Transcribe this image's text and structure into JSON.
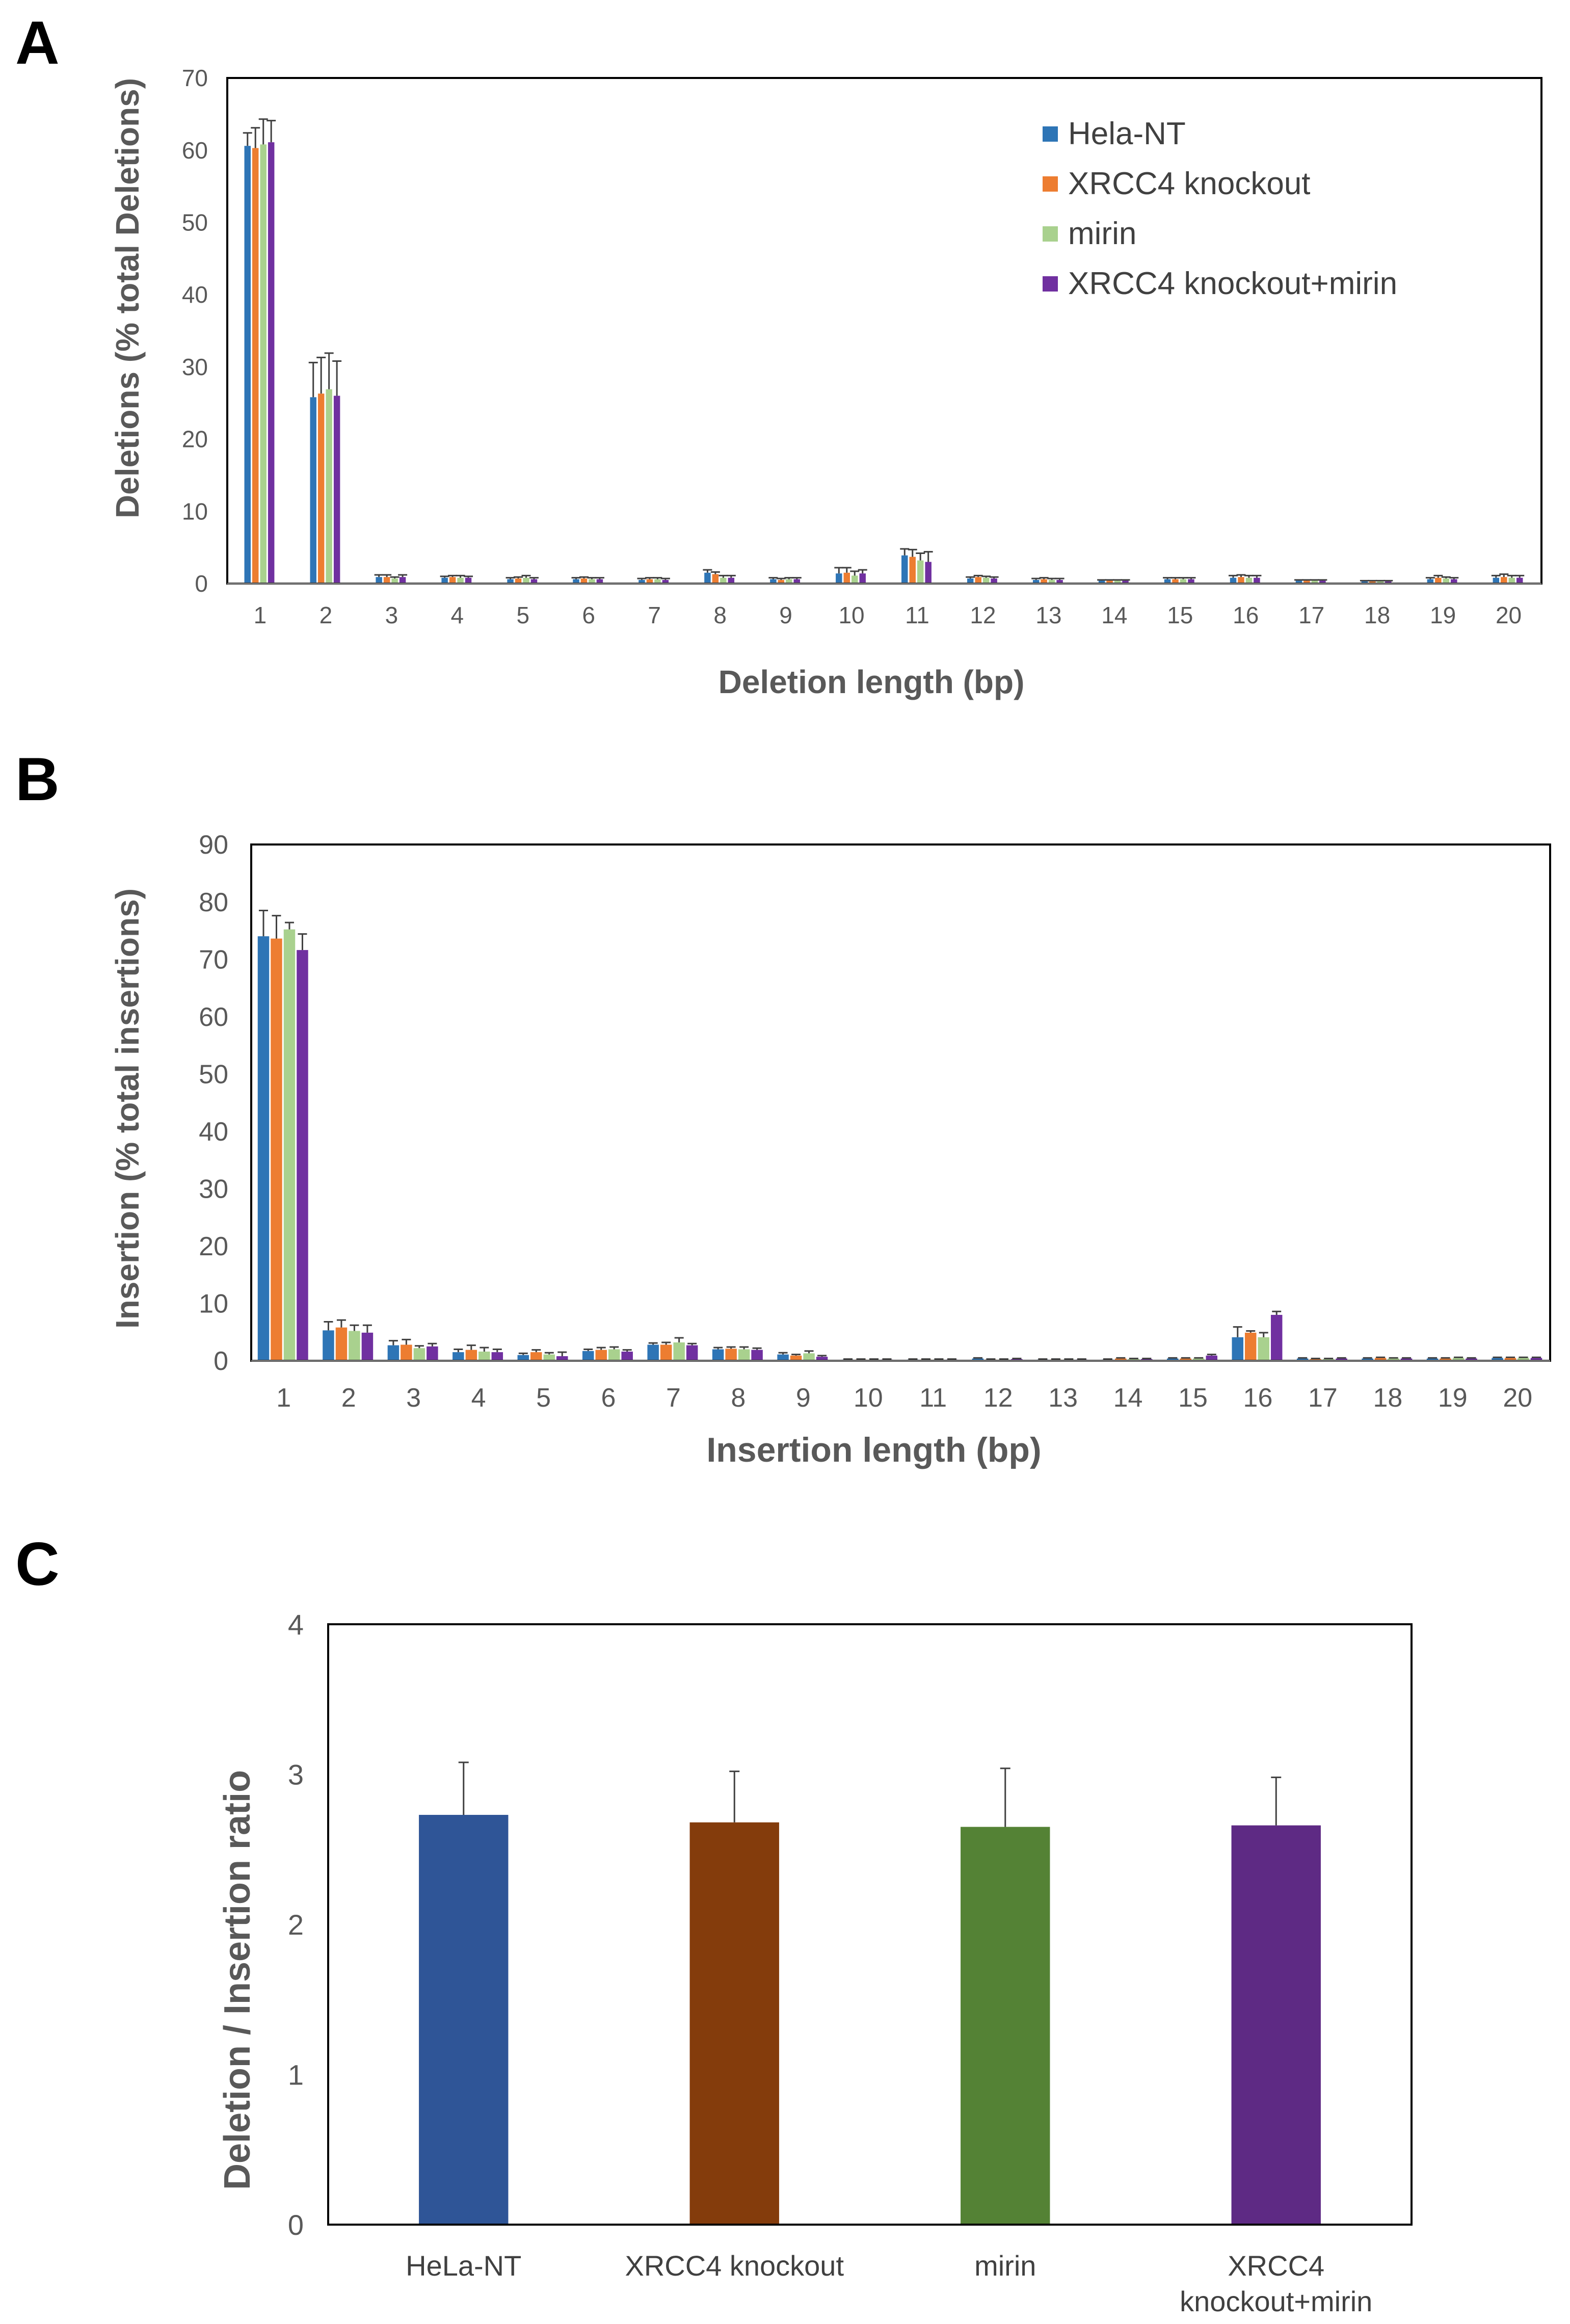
{
  "series_colors": [
    "#2E75B6",
    "#ED7D31",
    "#A9D18E",
    "#7030A0"
  ],
  "panel_c_colors": [
    "#2F5597",
    "#843C0C",
    "#548235",
    "#5E2A84"
  ],
  "chart_data": [
    {
      "panel_label": "A",
      "type": "bar",
      "title": "",
      "xlabel": "Deletion length (bp)",
      "ylabel": "Deletions (% total Deletions)",
      "ylim": [
        0,
        70
      ],
      "yticks": [
        0,
        10,
        20,
        30,
        40,
        50,
        60,
        70
      ],
      "grid": false,
      "legend": "top-right",
      "categories": [
        "1",
        "2",
        "3",
        "4",
        "5",
        "6",
        "7",
        "8",
        "9",
        "10",
        "11",
        "12",
        "13",
        "14",
        "15",
        "16",
        "17",
        "18",
        "19",
        "20"
      ],
      "series": [
        {
          "name": "Hela-NT",
          "values": [
            60.6,
            25.8,
            0.9,
            0.8,
            0.6,
            0.6,
            0.5,
            1.5,
            0.6,
            1.4,
            3.9,
            0.7,
            0.5,
            0.4,
            0.6,
            0.8,
            0.4,
            0.3,
            0.6,
            0.8
          ],
          "errors": [
            1.8,
            4.8,
            0.3,
            0.2,
            0.2,
            0.2,
            0.2,
            0.4,
            0.2,
            0.8,
            0.9,
            0.2,
            0.2,
            0.1,
            0.2,
            0.3,
            0.1,
            0.1,
            0.2,
            0.3
          ]
        },
        {
          "name": "XRCC4 knockout",
          "values": [
            60.3,
            26.3,
            0.9,
            0.9,
            0.7,
            0.7,
            0.6,
            1.3,
            0.5,
            1.5,
            3.7,
            0.9,
            0.6,
            0.4,
            0.6,
            0.9,
            0.4,
            0.3,
            0.8,
            0.9
          ],
          "errors": [
            2.8,
            5.0,
            0.3,
            0.2,
            0.2,
            0.2,
            0.2,
            0.3,
            0.2,
            0.7,
            1.0,
            0.2,
            0.2,
            0.1,
            0.2,
            0.3,
            0.1,
            0.1,
            0.3,
            0.4
          ]
        },
        {
          "name": "mirin",
          "values": [
            60.8,
            26.9,
            0.7,
            0.8,
            0.8,
            0.6,
            0.6,
            0.8,
            0.6,
            1.1,
            3.2,
            0.8,
            0.5,
            0.4,
            0.6,
            0.8,
            0.4,
            0.3,
            0.7,
            0.8
          ],
          "errors": [
            3.5,
            5.0,
            0.2,
            0.3,
            0.3,
            0.2,
            0.2,
            0.3,
            0.2,
            0.6,
            1.0,
            0.2,
            0.2,
            0.1,
            0.2,
            0.3,
            0.1,
            0.1,
            0.2,
            0.3
          ]
        },
        {
          "name": "XRCC4 knockout+mirin",
          "values": [
            61.1,
            26.0,
            0.9,
            0.8,
            0.6,
            0.6,
            0.5,
            0.8,
            0.6,
            1.4,
            3.0,
            0.7,
            0.5,
            0.4,
            0.6,
            0.8,
            0.4,
            0.3,
            0.6,
            0.8
          ],
          "errors": [
            3.0,
            4.8,
            0.3,
            0.2,
            0.2,
            0.2,
            0.2,
            0.3,
            0.2,
            0.5,
            1.4,
            0.2,
            0.2,
            0.1,
            0.2,
            0.3,
            0.1,
            0.1,
            0.2,
            0.3
          ]
        }
      ]
    },
    {
      "panel_label": "B",
      "type": "bar",
      "title": "",
      "xlabel": "Insertion length (bp)",
      "ylabel": "Insertion (% total insertions)",
      "ylim": [
        0,
        90
      ],
      "yticks": [
        0,
        10,
        20,
        30,
        40,
        50,
        60,
        70,
        80,
        90
      ],
      "grid": false,
      "categories": [
        "1",
        "2",
        "3",
        "4",
        "5",
        "6",
        "7",
        "8",
        "9",
        "10",
        "11",
        "12",
        "13",
        "14",
        "15",
        "16",
        "17",
        "18",
        "19",
        "20"
      ],
      "series": [
        {
          "name": "Hela-NT",
          "values": [
            74.0,
            5.3,
            2.7,
            1.5,
            1.0,
            1.7,
            2.8,
            2.0,
            1.1,
            0.2,
            0.2,
            0.4,
            0.2,
            0.2,
            0.4,
            4.1,
            0.4,
            0.4,
            0.4,
            0.5
          ],
          "errors": [
            4.5,
            1.5,
            0.8,
            0.5,
            0.3,
            0.3,
            0.3,
            0.3,
            0.3,
            0.1,
            0.1,
            0.1,
            0.1,
            0.1,
            0.1,
            1.8,
            0.1,
            0.1,
            0.1,
            0.1
          ]
        },
        {
          "name": "XRCC4 knockout",
          "values": [
            73.6,
            5.8,
            2.8,
            1.9,
            1.5,
            1.9,
            2.8,
            2.1,
            0.9,
            0.2,
            0.2,
            0.2,
            0.2,
            0.4,
            0.4,
            4.9,
            0.3,
            0.5,
            0.4,
            0.5
          ],
          "errors": [
            4.0,
            1.3,
            0.9,
            0.8,
            0.4,
            0.4,
            0.4,
            0.3,
            0.2,
            0.1,
            0.1,
            0.1,
            0.1,
            0.1,
            0.1,
            0.3,
            0.1,
            0.1,
            0.1,
            0.1
          ]
        },
        {
          "name": "mirin",
          "values": [
            75.2,
            5.2,
            2.2,
            1.6,
            1.1,
            2.0,
            3.2,
            2.0,
            1.3,
            0.2,
            0.2,
            0.2,
            0.2,
            0.3,
            0.4,
            4.1,
            0.3,
            0.4,
            0.5,
            0.5
          ],
          "errors": [
            1.2,
            1.0,
            0.4,
            0.7,
            0.3,
            0.4,
            0.8,
            0.4,
            0.4,
            0.1,
            0.1,
            0.1,
            0.1,
            0.1,
            0.1,
            0.8,
            0.1,
            0.1,
            0.1,
            0.1
          ]
        },
        {
          "name": "XRCC4 knockout+mirin",
          "values": [
            71.6,
            4.9,
            2.5,
            1.5,
            0.8,
            1.6,
            2.7,
            1.9,
            0.7,
            0.2,
            0.2,
            0.3,
            0.2,
            0.3,
            0.9,
            8.0,
            0.4,
            0.4,
            0.4,
            0.5
          ],
          "errors": [
            2.8,
            1.3,
            0.5,
            0.5,
            0.7,
            0.3,
            0.3,
            0.3,
            0.2,
            0.1,
            0.1,
            0.1,
            0.1,
            0.1,
            0.2,
            0.6,
            0.1,
            0.1,
            0.1,
            0.1
          ]
        }
      ]
    },
    {
      "panel_label": "C",
      "type": "bar",
      "title": "",
      "xlabel": "",
      "ylabel": "Deletion / Insertion ratio",
      "ylim": [
        0,
        4
      ],
      "yticks": [
        0,
        1,
        2,
        3,
        4
      ],
      "grid": false,
      "categories": [
        "HeLa-NT",
        "XRCC4 knockout",
        "mirin",
        "XRCC4 knockout+mirin"
      ],
      "category_lines": [
        [
          "HeLa-NT"
        ],
        [
          "XRCC4 knockout"
        ],
        [
          "mirin"
        ],
        [
          "XRCC4",
          "knockout+mirin"
        ]
      ],
      "values": [
        2.73,
        2.68,
        2.65,
        2.66
      ],
      "errors": [
        0.35,
        0.34,
        0.39,
        0.32
      ]
    }
  ]
}
